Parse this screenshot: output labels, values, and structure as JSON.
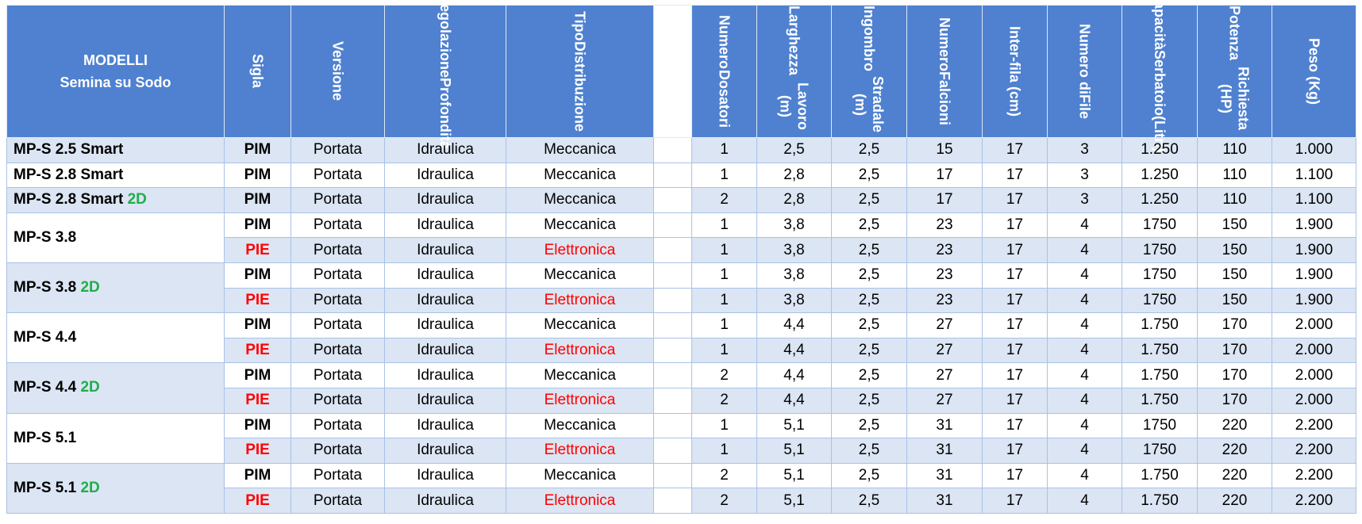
{
  "header": {
    "model_title": [
      "MODELLI",
      "Semina su Sodo"
    ],
    "columns": [
      [
        "Sigla"
      ],
      [
        "Versione"
      ],
      [
        "Regolazione",
        "Profondità"
      ],
      [
        "Tipo",
        "Distribuzione"
      ],
      [
        "Numero",
        "Dosatori"
      ],
      [
        "Larghezza",
        "Lavoro (m)"
      ],
      [
        "Ingombro",
        "Stradale (m)"
      ],
      [
        "Numero",
        "Falcioni"
      ],
      [
        "Inter-fila (cm)"
      ],
      [
        "Numero di",
        "File"
      ],
      [
        "Capacità",
        "Serbatoio",
        "(Litri)"
      ],
      [
        "Potenza",
        "Richiesta (HP)"
      ],
      [
        "Peso (Kg)"
      ]
    ]
  },
  "table": {
    "groups": [
      {
        "model": {
          "text": "MP-S 2.5 Smart"
        },
        "rows": [
          {
            "cells": [
              "PIM",
              "Portata",
              "Idraulica",
              "Meccanica",
              "1",
              "2,5",
              "2,5",
              "15",
              "17",
              "3",
              "1.250",
              "110",
              "1.000"
            ]
          }
        ]
      },
      {
        "model": {
          "text": "MP-S 2.8 Smart"
        },
        "rows": [
          {
            "cells": [
              "PIM",
              "Portata",
              "Idraulica",
              "Meccanica",
              "1",
              "2,8",
              "2,5",
              "17",
              "17",
              "3",
              "1.250",
              "110",
              "1.100"
            ]
          }
        ]
      },
      {
        "model": {
          "text": "MP-S 2.8 Smart",
          "tag": "2D",
          "tag_color": "#1fae4b"
        },
        "rows": [
          {
            "cells": [
              "PIM",
              "Portata",
              "Idraulica",
              "Meccanica",
              "2",
              "2,8",
              "2,5",
              "17",
              "17",
              "3",
              "1.250",
              "110",
              "1.100"
            ]
          }
        ]
      },
      {
        "model": {
          "text": "MP-S 3.8"
        },
        "rows": [
          {
            "cells": [
              "PIM",
              "Portata",
              "Idraulica",
              "Meccanica",
              "1",
              "3,8",
              "2,5",
              "23",
              "17",
              "4",
              "1750",
              "150",
              "1.900"
            ]
          },
          {
            "cells": [
              {
                "text": "PIE",
                "color": "#ff0000"
              },
              "Portata",
              "Idraulica",
              {
                "text": "Elettronica",
                "color": "#ff0000"
              },
              "1",
              "3,8",
              "2,5",
              "23",
              "17",
              "4",
              "1750",
              "150",
              "1.900"
            ]
          }
        ]
      },
      {
        "model": {
          "text": "MP-S 3.8",
          "tag": "2D",
          "tag_color": "#1fae4b"
        },
        "rows": [
          {
            "cells": [
              "PIM",
              "Portata",
              "Idraulica",
              "Meccanica",
              "1",
              "3,8",
              "2,5",
              "23",
              "17",
              "4",
              "1750",
              "150",
              "1.900"
            ]
          },
          {
            "cells": [
              {
                "text": "PIE",
                "color": "#ff0000"
              },
              "Portata",
              "Idraulica",
              {
                "text": "Elettronica",
                "color": "#ff0000"
              },
              "1",
              "3,8",
              "2,5",
              "23",
              "17",
              "4",
              "1750",
              "150",
              "1.900"
            ]
          }
        ]
      },
      {
        "model": {
          "text": "MP-S 4.4"
        },
        "rows": [
          {
            "cells": [
              "PIM",
              "Portata",
              "Idraulica",
              "Meccanica",
              "1",
              "4,4",
              "2,5",
              "27",
              "17",
              "4",
              "1.750",
              "170",
              "2.000"
            ]
          },
          {
            "cells": [
              {
                "text": "PIE",
                "color": "#ff0000"
              },
              "Portata",
              "Idraulica",
              {
                "text": "Elettronica",
                "color": "#ff0000"
              },
              "1",
              "4,4",
              "2,5",
              "27",
              "17",
              "4",
              "1.750",
              "170",
              "2.000"
            ]
          }
        ]
      },
      {
        "model": {
          "text": "MP-S 4.4",
          "tag": "2D",
          "tag_color": "#1fae4b"
        },
        "rows": [
          {
            "cells": [
              "PIM",
              "Portata",
              "Idraulica",
              "Meccanica",
              "2",
              "4,4",
              "2,5",
              "27",
              "17",
              "4",
              "1.750",
              "170",
              "2.000"
            ]
          },
          {
            "cells": [
              {
                "text": "PIE",
                "color": "#ff0000"
              },
              "Portata",
              "Idraulica",
              {
                "text": "Elettronica",
                "color": "#ff0000"
              },
              "2",
              "4,4",
              "2,5",
              "27",
              "17",
              "4",
              "1.750",
              "170",
              "2.000"
            ]
          }
        ]
      },
      {
        "model": {
          "text": "MP-S 5.1"
        },
        "rows": [
          {
            "cells": [
              "PIM",
              "Portata",
              "Idraulica",
              "Meccanica",
              "1",
              "5,1",
              "2,5",
              "31",
              "17",
              "4",
              "1750",
              "220",
              "2.200"
            ]
          },
          {
            "cells": [
              {
                "text": "PIE",
                "color": "#ff0000"
              },
              "Portata",
              "Idraulica",
              {
                "text": "Elettronica",
                "color": "#ff0000"
              },
              "1",
              "5,1",
              "2,5",
              "31",
              "17",
              "4",
              "1750",
              "220",
              "2.200"
            ]
          }
        ]
      },
      {
        "model": {
          "text": "MP-S 5.1",
          "tag": "2D",
          "tag_color": "#1fae4b"
        },
        "rows": [
          {
            "cells": [
              "PIM",
              "Portata",
              "Idraulica",
              "Meccanica",
              "2",
              "5,1",
              "2,5",
              "31",
              "17",
              "4",
              "1.750",
              "220",
              "2.200"
            ]
          },
          {
            "cells": [
              {
                "text": "PIE",
                "color": "#ff0000"
              },
              "Portata",
              "Idraulica",
              {
                "text": "Elettronica",
                "color": "#ff0000"
              },
              "2",
              "5,1",
              "2,5",
              "31",
              "17",
              "4",
              "1.750",
              "220",
              "2.200"
            ]
          }
        ]
      }
    ]
  }
}
